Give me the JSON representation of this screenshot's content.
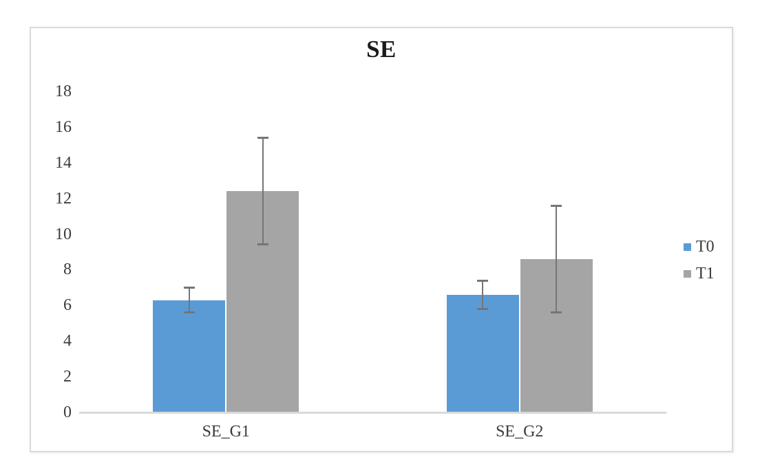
{
  "chart": {
    "title": "SE",
    "colors": {
      "series_t0": "#5B9BD5",
      "series_t1": "#A5A5A5",
      "error_bar": "#757575",
      "axis_line": "#D9D9D9",
      "frame_border": "#D9D9D9",
      "text": "#3B3B3B",
      "title_text": "#1A1A1A"
    }
  },
  "chart_data": {
    "type": "bar",
    "title": "SE",
    "categories": [
      "SE_G1",
      "SE_G2"
    ],
    "series": [
      {
        "name": "T0",
        "color": "#5B9BD5",
        "values": [
          6.3,
          6.6
        ],
        "errors": [
          0.7,
          0.8
        ]
      },
      {
        "name": "T1",
        "color": "#A5A5A5",
        "values": [
          12.4,
          8.6
        ],
        "errors": [
          3.0,
          3.0
        ]
      }
    ],
    "xlabel": "",
    "ylabel": "",
    "ylim": [
      0,
      18
    ],
    "yticks": [
      0,
      2,
      4,
      6,
      8,
      10,
      12,
      14,
      16,
      18
    ],
    "grid": false,
    "legend_position": "right",
    "error_bars": true
  }
}
